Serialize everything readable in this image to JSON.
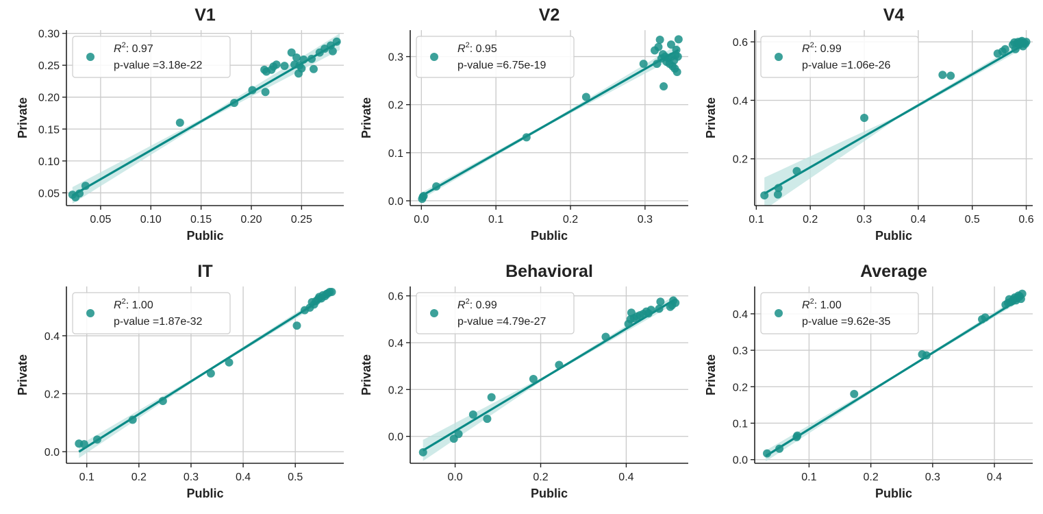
{
  "colors": {
    "point": "#1a9088",
    "line": "#0a8a86",
    "band": "#bfe3e0",
    "grid": "#cccccc",
    "axis": "#222222"
  },
  "chart_data": [
    {
      "type": "scatter",
      "title": "V1",
      "xlabel": "Public",
      "ylabel": "Private",
      "xlim": [
        0.016,
        0.292
      ],
      "ylim": [
        0.03,
        0.305
      ],
      "xticks": [
        0.05,
        0.1,
        0.15,
        0.2,
        0.25
      ],
      "xtick_labels": [
        "0.05",
        "0.10",
        "0.15",
        "0.20",
        "0.25"
      ],
      "yticks": [
        0.05,
        0.1,
        0.15,
        0.2,
        0.25,
        0.3
      ],
      "ytick_labels": [
        "0.05",
        "0.10",
        "0.15",
        "0.20",
        "0.25",
        "0.30"
      ],
      "legend_r2": "0.97",
      "legend_p": "p-value =3.18e-22",
      "fit": {
        "x": [
          0.022,
          0.288
        ],
        "y": [
          0.046,
          0.287
        ]
      },
      "band_width": [
        0.013,
        0.003,
        0.013
      ],
      "points": [
        [
          0.022,
          0.047
        ],
        [
          0.025,
          0.043
        ],
        [
          0.029,
          0.049
        ],
        [
          0.035,
          0.061
        ],
        [
          0.129,
          0.16
        ],
        [
          0.183,
          0.191
        ],
        [
          0.201,
          0.211
        ],
        [
          0.213,
          0.243
        ],
        [
          0.214,
          0.208
        ],
        [
          0.215,
          0.24
        ],
        [
          0.22,
          0.243
        ],
        [
          0.222,
          0.248
        ],
        [
          0.225,
          0.251
        ],
        [
          0.233,
          0.249
        ],
        [
          0.24,
          0.27
        ],
        [
          0.243,
          0.251
        ],
        [
          0.245,
          0.262
        ],
        [
          0.247,
          0.237
        ],
        [
          0.248,
          0.25
        ],
        [
          0.25,
          0.245
        ],
        [
          0.252,
          0.259
        ],
        [
          0.26,
          0.26
        ],
        [
          0.262,
          0.244
        ],
        [
          0.268,
          0.27
        ],
        [
          0.273,
          0.276
        ],
        [
          0.279,
          0.281
        ],
        [
          0.281,
          0.272
        ],
        [
          0.285,
          0.287
        ]
      ]
    },
    {
      "type": "scatter",
      "title": "V2",
      "xlabel": "Public",
      "ylabel": "Private",
      "xlim": [
        -0.015,
        0.358
      ],
      "ylim": [
        -0.01,
        0.355
      ],
      "xticks": [
        0.0,
        0.1,
        0.2,
        0.3
      ],
      "xtick_labels": [
        "0.0",
        "0.1",
        "0.2",
        "0.3"
      ],
      "yticks": [
        0.0,
        0.1,
        0.2,
        0.3
      ],
      "ytick_labels": [
        "0.0",
        "0.1",
        "0.2",
        "0.3"
      ],
      "legend_r2": "0.95",
      "legend_p": "p-value =6.75e-19",
      "fit": {
        "x": [
          0.0,
          0.345
        ],
        "y": [
          0.01,
          0.314
        ]
      },
      "band_width": [
        0.007,
        0.003,
        0.012
      ],
      "points": [
        [
          0.001,
          0.004
        ],
        [
          0.002,
          0.008
        ],
        [
          0.003,
          0.01
        ],
        [
          0.02,
          0.03
        ],
        [
          0.141,
          0.132
        ],
        [
          0.221,
          0.216
        ],
        [
          0.298,
          0.285
        ],
        [
          0.313,
          0.313
        ],
        [
          0.316,
          0.285
        ],
        [
          0.318,
          0.32
        ],
        [
          0.32,
          0.335
        ],
        [
          0.322,
          0.296
        ],
        [
          0.324,
          0.305
        ],
        [
          0.325,
          0.238
        ],
        [
          0.327,
          0.3
        ],
        [
          0.329,
          0.289
        ],
        [
          0.331,
          0.297
        ],
        [
          0.333,
          0.285
        ],
        [
          0.335,
          0.325
        ],
        [
          0.336,
          0.3
        ],
        [
          0.337,
          0.28
        ],
        [
          0.339,
          0.292
        ],
        [
          0.34,
          0.275
        ],
        [
          0.341,
          0.303
        ],
        [
          0.342,
          0.314
        ],
        [
          0.343,
          0.268
        ],
        [
          0.344,
          0.3
        ],
        [
          0.345,
          0.336
        ]
      ]
    },
    {
      "type": "scatter",
      "title": "V4",
      "xlabel": "Public",
      "ylabel": "Private",
      "xlim": [
        0.097,
        0.612
      ],
      "ylim": [
        0.04,
        0.64
      ],
      "xticks": [
        0.1,
        0.2,
        0.3,
        0.4,
        0.5,
        0.6
      ],
      "xtick_labels": [
        "0.1",
        "0.2",
        "0.3",
        "0.4",
        "0.5",
        "0.6"
      ],
      "yticks": [
        0.2,
        0.4,
        0.6
      ],
      "ytick_labels": [
        "0.2",
        "0.4",
        "0.6"
      ],
      "legend_r2": "0.99",
      "legend_p": "p-value =1.06e-26",
      "fit": {
        "x": [
          0.115,
          0.6
        ],
        "y": [
          0.081,
          0.595
        ]
      },
      "band_width": [
        0.055,
        0.005,
        0.012
      ],
      "points": [
        [
          0.115,
          0.075
        ],
        [
          0.14,
          0.078
        ],
        [
          0.141,
          0.1
        ],
        [
          0.175,
          0.158
        ],
        [
          0.3,
          0.34
        ],
        [
          0.445,
          0.487
        ],
        [
          0.46,
          0.484
        ],
        [
          0.547,
          0.56
        ],
        [
          0.556,
          0.567
        ],
        [
          0.561,
          0.575
        ],
        [
          0.575,
          0.59
        ],
        [
          0.578,
          0.598
        ],
        [
          0.58,
          0.575
        ],
        [
          0.583,
          0.595
        ],
        [
          0.585,
          0.6
        ],
        [
          0.587,
          0.59
        ],
        [
          0.59,
          0.6
        ],
        [
          0.592,
          0.603
        ],
        [
          0.594,
          0.585
        ],
        [
          0.596,
          0.597
        ],
        [
          0.598,
          0.593
        ],
        [
          0.6,
          0.6
        ]
      ]
    },
    {
      "type": "scatter",
      "title": "IT",
      "xlabel": "Public",
      "ylabel": "Private",
      "xlim": [
        0.061,
        0.593
      ],
      "ylim": [
        -0.04,
        0.57
      ],
      "xticks": [
        0.1,
        0.2,
        0.3,
        0.4,
        0.5
      ],
      "xtick_labels": [
        "0.1",
        "0.2",
        "0.3",
        "0.4",
        "0.5"
      ],
      "yticks": [
        0.0,
        0.2,
        0.4
      ],
      "ytick_labels": [
        "0.0",
        "0.2",
        "0.4"
      ],
      "legend_r2": "1.00",
      "legend_p": "p-value =1.87e-32",
      "fit": {
        "x": [
          0.085,
          0.57
        ],
        "y": [
          0.0,
          0.547
        ]
      },
      "band_width": [
        0.022,
        0.004,
        0.012
      ],
      "points": [
        [
          0.085,
          0.028
        ],
        [
          0.095,
          0.026
        ],
        [
          0.12,
          0.042
        ],
        [
          0.188,
          0.11
        ],
        [
          0.246,
          0.175
        ],
        [
          0.338,
          0.27
        ],
        [
          0.373,
          0.308
        ],
        [
          0.503,
          0.435
        ],
        [
          0.518,
          0.488
        ],
        [
          0.528,
          0.497
        ],
        [
          0.532,
          0.516
        ],
        [
          0.536,
          0.508
        ],
        [
          0.54,
          0.52
        ],
        [
          0.544,
          0.527
        ],
        [
          0.546,
          0.534
        ],
        [
          0.55,
          0.529
        ],
        [
          0.553,
          0.54
        ],
        [
          0.557,
          0.537
        ],
        [
          0.56,
          0.544
        ],
        [
          0.562,
          0.546
        ],
        [
          0.566,
          0.551
        ],
        [
          0.57,
          0.551
        ]
      ]
    },
    {
      "type": "scatter",
      "title": "Behavioral",
      "xlabel": "Public",
      "ylabel": "Private",
      "xlim": [
        -0.105,
        0.545
      ],
      "ylim": [
        -0.115,
        0.64
      ],
      "xticks": [
        0.0,
        0.2,
        0.4
      ],
      "xtick_labels": [
        "0.0",
        "0.2",
        "0.4"
      ],
      "yticks": [
        0.0,
        0.2,
        0.4,
        0.6
      ],
      "ytick_labels": [
        "0.0",
        "0.2",
        "0.4",
        "0.6"
      ],
      "legend_r2": "0.99",
      "legend_p": "p-value =4.79e-27",
      "fit": {
        "x": [
          -0.075,
          0.515
        ],
        "y": [
          -0.06,
          0.586
        ]
      },
      "band_width": [
        0.045,
        0.005,
        0.018
      ],
      "points": [
        [
          -0.075,
          -0.068
        ],
        [
          -0.003,
          -0.01
        ],
        [
          0.008,
          0.01
        ],
        [
          0.042,
          0.093
        ],
        [
          0.075,
          0.075
        ],
        [
          0.085,
          0.167
        ],
        [
          0.183,
          0.245
        ],
        [
          0.243,
          0.305
        ],
        [
          0.352,
          0.425
        ],
        [
          0.405,
          0.48
        ],
        [
          0.41,
          0.5
        ],
        [
          0.412,
          0.528
        ],
        [
          0.418,
          0.505
        ],
        [
          0.425,
          0.512
        ],
        [
          0.432,
          0.517
        ],
        [
          0.44,
          0.523
        ],
        [
          0.447,
          0.533
        ],
        [
          0.452,
          0.525
        ],
        [
          0.458,
          0.54
        ],
        [
          0.477,
          0.545
        ],
        [
          0.48,
          0.575
        ],
        [
          0.503,
          0.553
        ],
        [
          0.507,
          0.56
        ],
        [
          0.51,
          0.58
        ],
        [
          0.515,
          0.57
        ]
      ]
    },
    {
      "type": "scatter",
      "title": "Average",
      "xlabel": "Public",
      "ylabel": "Private",
      "xlim": [
        0.012,
        0.462
      ],
      "ylim": [
        -0.01,
        0.475
      ],
      "xticks": [
        0.1,
        0.2,
        0.3,
        0.4
      ],
      "xtick_labels": [
        "0.1",
        "0.2",
        "0.3",
        "0.4"
      ],
      "yticks": [
        0.0,
        0.1,
        0.2,
        0.3,
        0.4
      ],
      "ytick_labels": [
        "0.0",
        "0.1",
        "0.2",
        "0.3",
        "0.4"
      ],
      "legend_r2": "1.00",
      "legend_p": "p-value =9.62e-35",
      "fit": {
        "x": [
          0.03,
          0.445
        ],
        "y": [
          0.01,
          0.445
        ]
      },
      "band_width": [
        0.015,
        0.003,
        0.008
      ],
      "points": [
        [
          0.032,
          0.017
        ],
        [
          0.052,
          0.03
        ],
        [
          0.08,
          0.062
        ],
        [
          0.081,
          0.066
        ],
        [
          0.173,
          0.18
        ],
        [
          0.283,
          0.289
        ],
        [
          0.29,
          0.286
        ],
        [
          0.38,
          0.385
        ],
        [
          0.385,
          0.39
        ],
        [
          0.418,
          0.425
        ],
        [
          0.422,
          0.43
        ],
        [
          0.424,
          0.44
        ],
        [
          0.426,
          0.432
        ],
        [
          0.429,
          0.435
        ],
        [
          0.431,
          0.44
        ],
        [
          0.433,
          0.445
        ],
        [
          0.435,
          0.437
        ],
        [
          0.437,
          0.443
        ],
        [
          0.439,
          0.45
        ],
        [
          0.441,
          0.448
        ],
        [
          0.443,
          0.441
        ],
        [
          0.445,
          0.455
        ]
      ]
    }
  ]
}
